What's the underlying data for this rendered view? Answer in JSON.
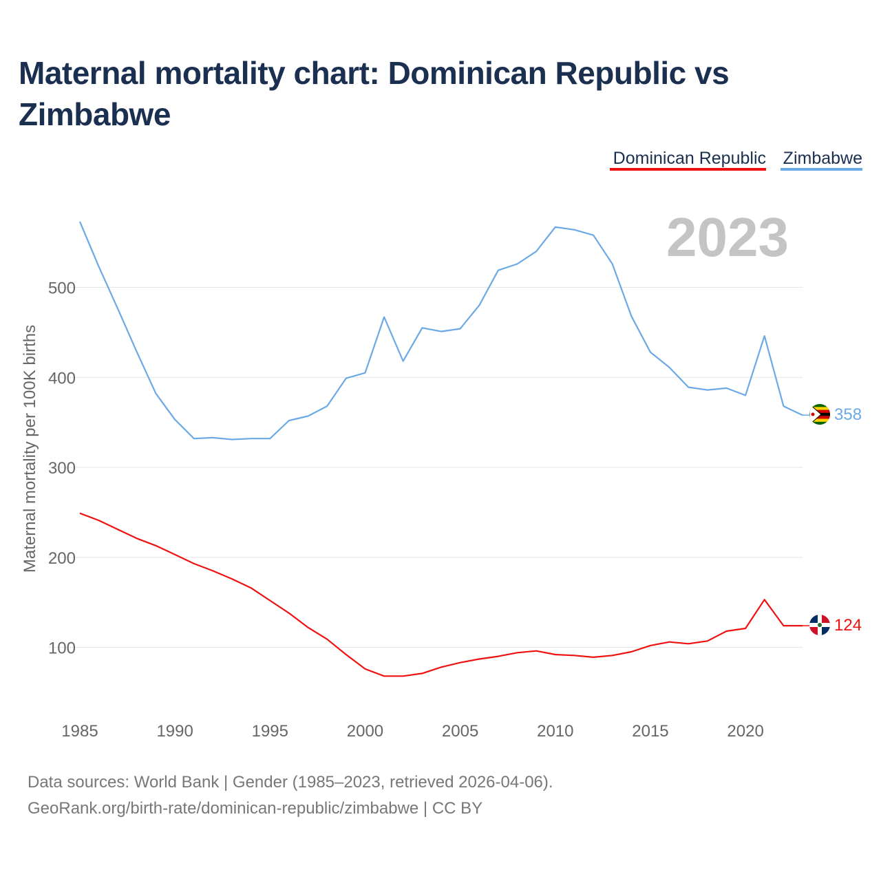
{
  "title": "Maternal mortality chart: Dominican Republic vs Zimbabwe",
  "footer": {
    "source": "Data sources: World Bank | Gender (1985–2023, retrieved 2026-04-06).",
    "credit": "GeoRank.org/birth-rate/dominican-republic/zimbabwe | CC BY"
  },
  "chart_data": {
    "type": "line",
    "title": "Maternal mortality chart: Dominican Republic vs Zimbabwe",
    "ylabel": "Maternal mortality per 100K births",
    "xlabel": "",
    "year_label": "2023",
    "legend_position": "top-right",
    "xlim": [
      1985,
      2023
    ],
    "ylim": [
      40,
      585
    ],
    "x_ticks": [
      1985,
      1990,
      1995,
      2000,
      2005,
      2010,
      2015,
      2020
    ],
    "y_ticks": [
      100,
      200,
      300,
      400,
      500
    ],
    "x": [
      1985,
      1986,
      1987,
      1988,
      1989,
      1990,
      1991,
      1992,
      1993,
      1994,
      1995,
      1996,
      1997,
      1998,
      1999,
      2000,
      2001,
      2002,
      2003,
      2004,
      2005,
      2006,
      2007,
      2008,
      2009,
      2010,
      2011,
      2012,
      2013,
      2014,
      2015,
      2016,
      2017,
      2018,
      2019,
      2020,
      2021,
      2022,
      2023
    ],
    "series": [
      {
        "name": "Dominican Republic",
        "color": "#ee1111",
        "flag": "dominican-republic-flag-icon",
        "end_label": "124",
        "values": [
          249,
          241,
          231,
          221,
          213,
          203,
          193,
          185,
          176,
          166,
          152,
          138,
          122,
          109,
          92,
          76,
          68,
          68,
          71,
          78,
          83,
          87,
          90,
          94,
          96,
          92,
          91,
          89,
          91,
          95,
          102,
          106,
          104,
          107,
          118,
          121,
          153,
          124,
          124
        ]
      },
      {
        "name": "Zimbabwe",
        "color": "#6aa9e6",
        "flag": "zimbabwe-flag-icon",
        "end_label": "358",
        "values": [
          573,
          523,
          476,
          428,
          382,
          353,
          332,
          333,
          331,
          332,
          332,
          352,
          357,
          368,
          399,
          405,
          467,
          418,
          455,
          451,
          454,
          480,
          519,
          526,
          540,
          567,
          564,
          558,
          526,
          468,
          428,
          411,
          389,
          386,
          388,
          380,
          446,
          368,
          358
        ]
      }
    ]
  }
}
